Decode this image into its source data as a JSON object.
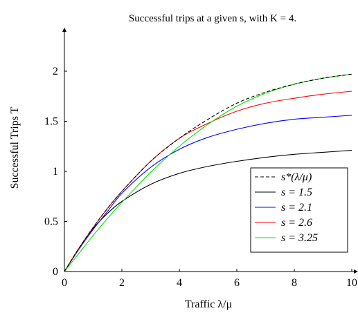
{
  "chart_data": {
    "type": "line",
    "title": "Successful trips at a given s, with K = 4.",
    "xlabel": "Traffic λ/μ",
    "ylabel": "Successful Trips T",
    "xlim": [
      0,
      10
    ],
    "ylim": [
      0,
      2.4
    ],
    "x_ticks": [
      0,
      2,
      4,
      6,
      8,
      10
    ],
    "x_tick_labels": [
      "0",
      "2",
      "4",
      "6",
      "8",
      "10"
    ],
    "y_ticks": [
      0,
      0.5,
      1,
      1.5,
      2
    ],
    "y_tick_labels": [
      "0",
      "0.5",
      "1",
      "1.5",
      "2"
    ],
    "grid": false,
    "legend_position": "bottom-right",
    "x": [
      0,
      0.5,
      1,
      1.5,
      2,
      3,
      4,
      5,
      6,
      7,
      8,
      9,
      10
    ],
    "series": [
      {
        "name": "s*(λ/μ)",
        "color": "#000000",
        "dash": true,
        "values": [
          0,
          0.23,
          0.44,
          0.63,
          0.8,
          1.1,
          1.33,
          1.52,
          1.68,
          1.79,
          1.87,
          1.93,
          1.97
        ]
      },
      {
        "name": "s = 1.5",
        "color": "#000000",
        "dash": false,
        "values": [
          0,
          0.23,
          0.43,
          0.58,
          0.7,
          0.87,
          0.98,
          1.05,
          1.1,
          1.14,
          1.17,
          1.19,
          1.21
        ]
      },
      {
        "name": "s = 2.1",
        "color": "#0000ff",
        "dash": false,
        "values": [
          0,
          0.22,
          0.42,
          0.6,
          0.78,
          1.04,
          1.22,
          1.34,
          1.42,
          1.48,
          1.52,
          1.54,
          1.56
        ]
      },
      {
        "name": "s = 2.6",
        "color": "#ff0000",
        "dash": false,
        "values": [
          0,
          0.23,
          0.44,
          0.63,
          0.8,
          1.1,
          1.33,
          1.48,
          1.6,
          1.68,
          1.73,
          1.77,
          1.8
        ]
      },
      {
        "name": "s = 3.25",
        "color": "#00e600",
        "dash": false,
        "values": [
          0,
          0.18,
          0.36,
          0.53,
          0.69,
          0.99,
          1.25,
          1.47,
          1.65,
          1.78,
          1.87,
          1.93,
          1.97
        ]
      }
    ]
  }
}
